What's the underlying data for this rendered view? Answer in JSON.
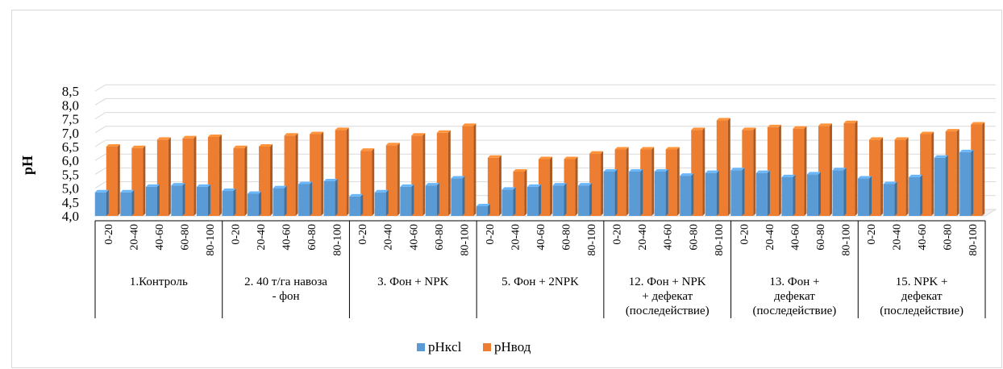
{
  "chart_data": {
    "type": "bar",
    "title": "",
    "ylabel": "pH",
    "xlabel": "",
    "ylim": [
      4.0,
      8.5
    ],
    "yticks": [
      "4,0",
      "4,5",
      "5,0",
      "5,5",
      "6,0",
      "6,5",
      "7,0",
      "7,5",
      "8,0",
      "8,5"
    ],
    "grid": true,
    "legend_position": "bottom",
    "depths": [
      "0-20",
      "20-40",
      "40-60",
      "60-80",
      "80-100"
    ],
    "groups": [
      {
        "label_lines": [
          "1.Контроль"
        ]
      },
      {
        "label_lines": [
          "2. 40 т/га навоза",
          "- фон"
        ]
      },
      {
        "label_lines": [
          "3. Фон + NPK"
        ]
      },
      {
        "label_lines": [
          "5. Фон + 2NPK"
        ]
      },
      {
        "label_lines": [
          "12. Фон + NPK",
          "+ дефекат",
          "(последействие)"
        ]
      },
      {
        "label_lines": [
          "13.  Фон +",
          "дефекат",
          "(последействие)"
        ]
      },
      {
        "label_lines": [
          "15. NPK +",
          "дефекат",
          "(последействие)"
        ]
      }
    ],
    "series": [
      {
        "name": "pHкcl",
        "color": "#5b9bd5",
        "values": [
          4.85,
          4.85,
          5.05,
          5.1,
          5.05,
          4.9,
          4.8,
          5.0,
          5.15,
          5.25,
          4.7,
          4.85,
          5.05,
          5.1,
          5.35,
          4.35,
          4.95,
          5.05,
          5.1,
          5.1,
          5.6,
          5.6,
          5.6,
          5.45,
          5.55,
          5.65,
          5.55,
          5.4,
          5.5,
          5.65,
          5.35,
          5.15,
          5.4,
          6.1,
          6.3
        ]
      },
      {
        "name": "pHвод",
        "color": "#ed7d31",
        "values": [
          6.5,
          6.45,
          6.75,
          6.8,
          6.85,
          6.45,
          6.5,
          6.9,
          6.95,
          7.1,
          6.35,
          6.55,
          6.9,
          7.0,
          7.25,
          6.1,
          5.6,
          6.05,
          6.05,
          6.25,
          6.4,
          6.4,
          6.4,
          7.1,
          7.45,
          7.1,
          7.2,
          7.15,
          7.25,
          7.35,
          6.75,
          6.75,
          6.95,
          7.05,
          7.3
        ]
      }
    ]
  }
}
